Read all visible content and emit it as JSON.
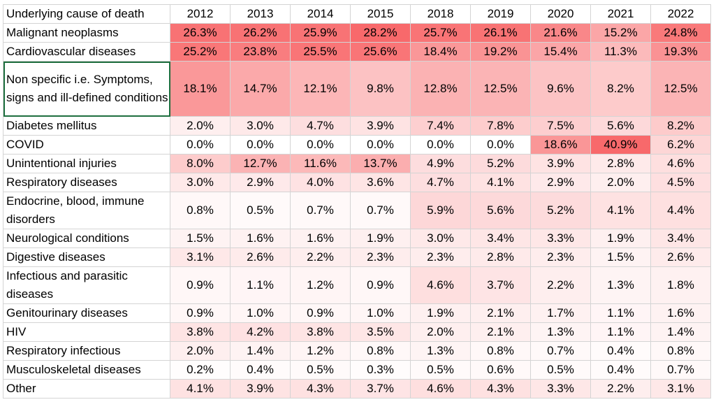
{
  "table": {
    "header_label": "Underlying cause of death",
    "years": [
      "2012",
      "2013",
      "2014",
      "2015",
      "2018",
      "2019",
      "2020",
      "2021",
      "2022"
    ],
    "rows": [
      {
        "cause": "Malignant neoplasms",
        "values": [
          26.3,
          26.2,
          25.9,
          28.2,
          25.7,
          26.1,
          21.6,
          15.2,
          24.8
        ]
      },
      {
        "cause": "Cardiovascular diseases",
        "values": [
          25.2,
          23.8,
          25.5,
          25.6,
          18.4,
          19.2,
          15.4,
          11.3,
          19.3
        ]
      },
      {
        "cause": "Non specific i.e. Symptoms, signs and ill-defined conditions",
        "values": [
          18.1,
          14.7,
          12.1,
          9.8,
          12.8,
          12.5,
          9.6,
          8.2,
          12.5
        ]
      },
      {
        "cause": "Diabetes mellitus",
        "values": [
          2.0,
          3.0,
          4.7,
          3.9,
          7.4,
          7.8,
          7.5,
          5.6,
          8.2
        ]
      },
      {
        "cause": "COVID",
        "values": [
          0.0,
          0.0,
          0.0,
          0.0,
          0.0,
          0.0,
          18.6,
          40.9,
          6.2
        ]
      },
      {
        "cause": "Unintentional injuries",
        "values": [
          8.0,
          12.7,
          11.6,
          13.7,
          4.9,
          5.2,
          3.9,
          2.8,
          4.6
        ]
      },
      {
        "cause": "Respiratory diseases",
        "values": [
          3.0,
          2.9,
          4.0,
          3.6,
          4.7,
          4.1,
          2.9,
          2.0,
          4.5
        ]
      },
      {
        "cause": "Endocrine, blood, immune disorders",
        "values": [
          0.8,
          0.5,
          0.7,
          0.7,
          5.9,
          5.6,
          5.2,
          4.1,
          4.4
        ]
      },
      {
        "cause": "Neurological conditions",
        "values": [
          1.5,
          1.6,
          1.6,
          1.9,
          3.0,
          3.4,
          3.3,
          1.9,
          3.4
        ]
      },
      {
        "cause": "Digestive diseases",
        "values": [
          3.1,
          2.6,
          2.2,
          2.3,
          2.3,
          2.8,
          2.3,
          1.5,
          2.6
        ]
      },
      {
        "cause": "Infectious and parasitic diseases",
        "values": [
          0.9,
          1.1,
          1.2,
          0.9,
          4.6,
          3.7,
          2.2,
          1.3,
          1.8
        ]
      },
      {
        "cause": "Genitourinary diseases",
        "values": [
          0.9,
          1.0,
          0.9,
          1.0,
          1.9,
          2.1,
          1.7,
          1.1,
          1.6
        ]
      },
      {
        "cause": "HIV",
        "values": [
          3.8,
          4.2,
          3.8,
          3.5,
          2.0,
          2.1,
          1.3,
          1.1,
          1.4
        ]
      },
      {
        "cause": "Respiratory infectious",
        "values": [
          2.0,
          1.4,
          1.2,
          0.8,
          1.3,
          0.8,
          0.7,
          0.4,
          0.8
        ]
      },
      {
        "cause": "Musculoskeletal diseases",
        "values": [
          0.2,
          0.4,
          0.5,
          0.3,
          0.5,
          0.6,
          0.5,
          0.4,
          0.7
        ]
      },
      {
        "cause": "Other",
        "values": [
          4.1,
          3.9,
          4.3,
          3.7,
          4.6,
          4.3,
          3.3,
          2.2,
          3.1
        ]
      }
    ]
  },
  "heatmap": {
    "low_color": "#ffffff",
    "high_color": "#f8696b",
    "selected_cell": "Non specific i.e. Symptoms, signs and ill-defined conditions"
  }
}
